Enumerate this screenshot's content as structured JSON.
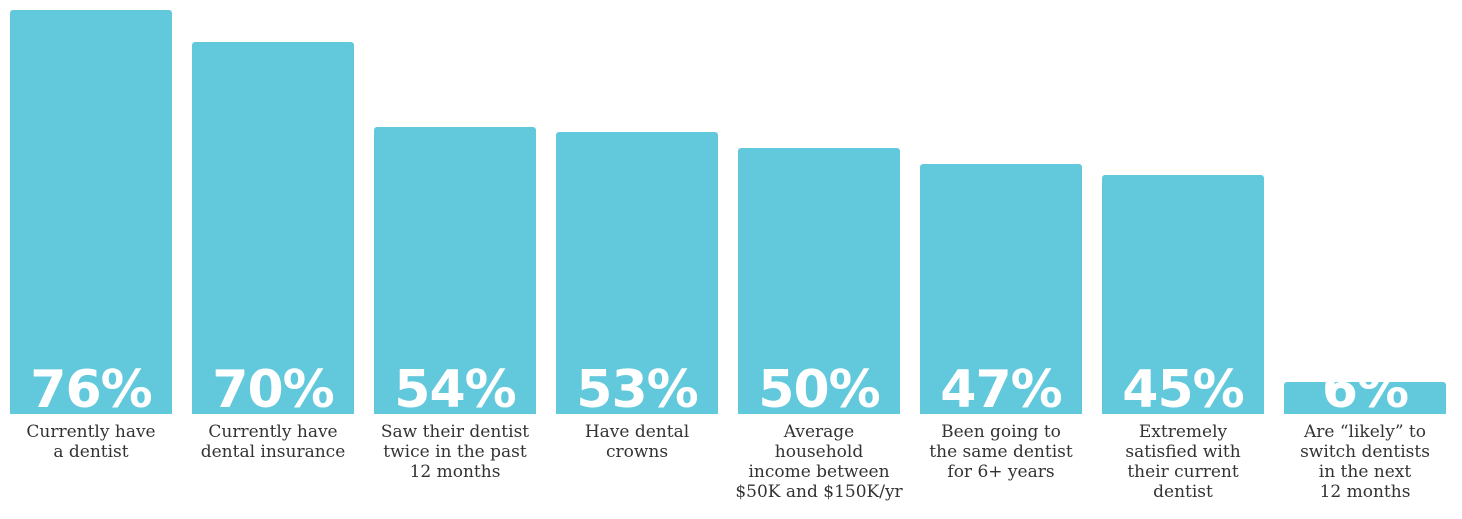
{
  "chart_data": {
    "type": "bar",
    "categories": [
      "Currently have\na dentist",
      "Currently have\ndental insurance",
      "Saw their dentist\ntwice in the past\n12 months",
      "Have dental\ncrowns",
      "Average\nhousehold\nincome between\n$50K and $150K/yr",
      "Been going to\nthe same dentist\nfor 6+ years",
      "Extremely\nsatisfied with\ntheir current\ndentist",
      "Are “likely” to\nswitch dentists\nin the next\n12 months"
    ],
    "values": [
      76,
      70,
      54,
      53,
      50,
      47,
      45,
      6
    ],
    "value_labels": [
      "76%",
      "70%",
      "54%",
      "53%",
      "50%",
      "47%",
      "45%",
      "6%"
    ],
    "bar_color": "#62c8dc",
    "value_label_color": "#ffffff",
    "label_color": "#333333",
    "grid": false
  }
}
